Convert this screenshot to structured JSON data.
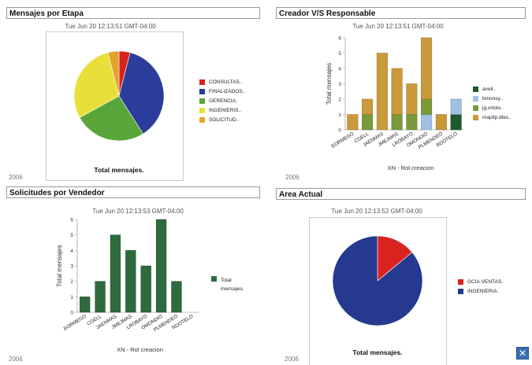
{
  "panels": {
    "etapa": {
      "title": "Mensajes por Etapa",
      "timestamp": "Tue Jun 20 12:13:51 GMT-04:00",
      "footer_year": "2006"
    },
    "creador": {
      "title": "Creador V/S Responsable",
      "timestamp": "Tue Jun 20 12:13:51 GMT-04:00",
      "footer_year": "2006"
    },
    "vendedor": {
      "title": "Solicitudes por Vendedor",
      "timestamp": "Tue Jun 20 12:13:53 GMT-04:00",
      "footer_year": "2006"
    },
    "area": {
      "title": "Area Actual",
      "timestamp": "Tue Jun 20 12:13:52 GMT-04:00",
      "footer_year": "2006"
    }
  },
  "corner_button": {
    "icon": "close-icon",
    "glyph": "✕"
  },
  "chart_data": [
    {
      "id": "etapa",
      "type": "pie",
      "title": "",
      "xlabel": "Total mensajes.",
      "slices": [
        {
          "label": "CONSULTAS..",
          "value": 4,
          "color": "#d9231f"
        },
        {
          "label": "FINALIZADOS..",
          "value": 37,
          "color": "#2a3d9a"
        },
        {
          "label": "GERENCIA.",
          "value": 26,
          "color": "#58a63a"
        },
        {
          "label": "INGENIERIS..",
          "value": 29,
          "color": "#e8df3a"
        },
        {
          "label": "SOLICITUD..",
          "value": 4,
          "color": "#e3a32c"
        }
      ]
    },
    {
      "id": "creador",
      "type": "bar",
      "stacked": true,
      "categories": [
        "EORMEGO",
        "CGELL",
        "JAENMAS",
        "JMEJMAS",
        "LROBAYO",
        "OMONDIO",
        "PLMENDEO",
        "RDOTELO"
      ],
      "xlabel": "XN - Rol creacion",
      "ylabel": "Total mensajes",
      "ylim": [
        0,
        6
      ],
      "yticks": [
        0,
        1,
        2,
        3,
        4,
        5,
        6
      ],
      "series": [
        {
          "name": "aveli..",
          "color": "#1f5a2e",
          "values": [
            0,
            0,
            0,
            0,
            0,
            0,
            0,
            1
          ]
        },
        {
          "name": "bmonsy..",
          "color": "#9fc0e3",
          "values": [
            0,
            0,
            0,
            0,
            0,
            1,
            0,
            1
          ]
        },
        {
          "name": "jg.ortolo..",
          "color": "#7a9a3a",
          "values": [
            0,
            1,
            0,
            1,
            1,
            1,
            0,
            0
          ]
        },
        {
          "name": "mapilp.dtes..",
          "color": "#c99a3a",
          "values": [
            1,
            1,
            5,
            3,
            2,
            4,
            1,
            0
          ]
        }
      ]
    },
    {
      "id": "vendedor",
      "type": "bar",
      "categories": [
        "EORMEGO",
        "CGELL",
        "JAENMAS",
        "JMEJMAS",
        "LROBAYO",
        "OMONDIO",
        "PLMENDEO",
        "RDOTELO"
      ],
      "xlabel": "XN - Rol creacion",
      "ylabel": "Total mensajes",
      "ylim": [
        0,
        6
      ],
      "yticks": [
        0,
        1,
        2,
        3,
        4,
        5,
        6
      ],
      "series": [
        {
          "name": "Total mensajes.",
          "color": "#2e6b3c",
          "values": [
            1,
            2,
            5,
            4,
            3,
            6,
            2,
            0
          ]
        }
      ]
    },
    {
      "id": "area",
      "type": "pie",
      "title": "",
      "xlabel": "Total mensajes.",
      "slices": [
        {
          "label": "GCIA.VENTAS.",
          "value": 14,
          "color": "#d9231f"
        },
        {
          "label": "INGENIERIA.",
          "value": 86,
          "color": "#24398f"
        }
      ]
    }
  ]
}
